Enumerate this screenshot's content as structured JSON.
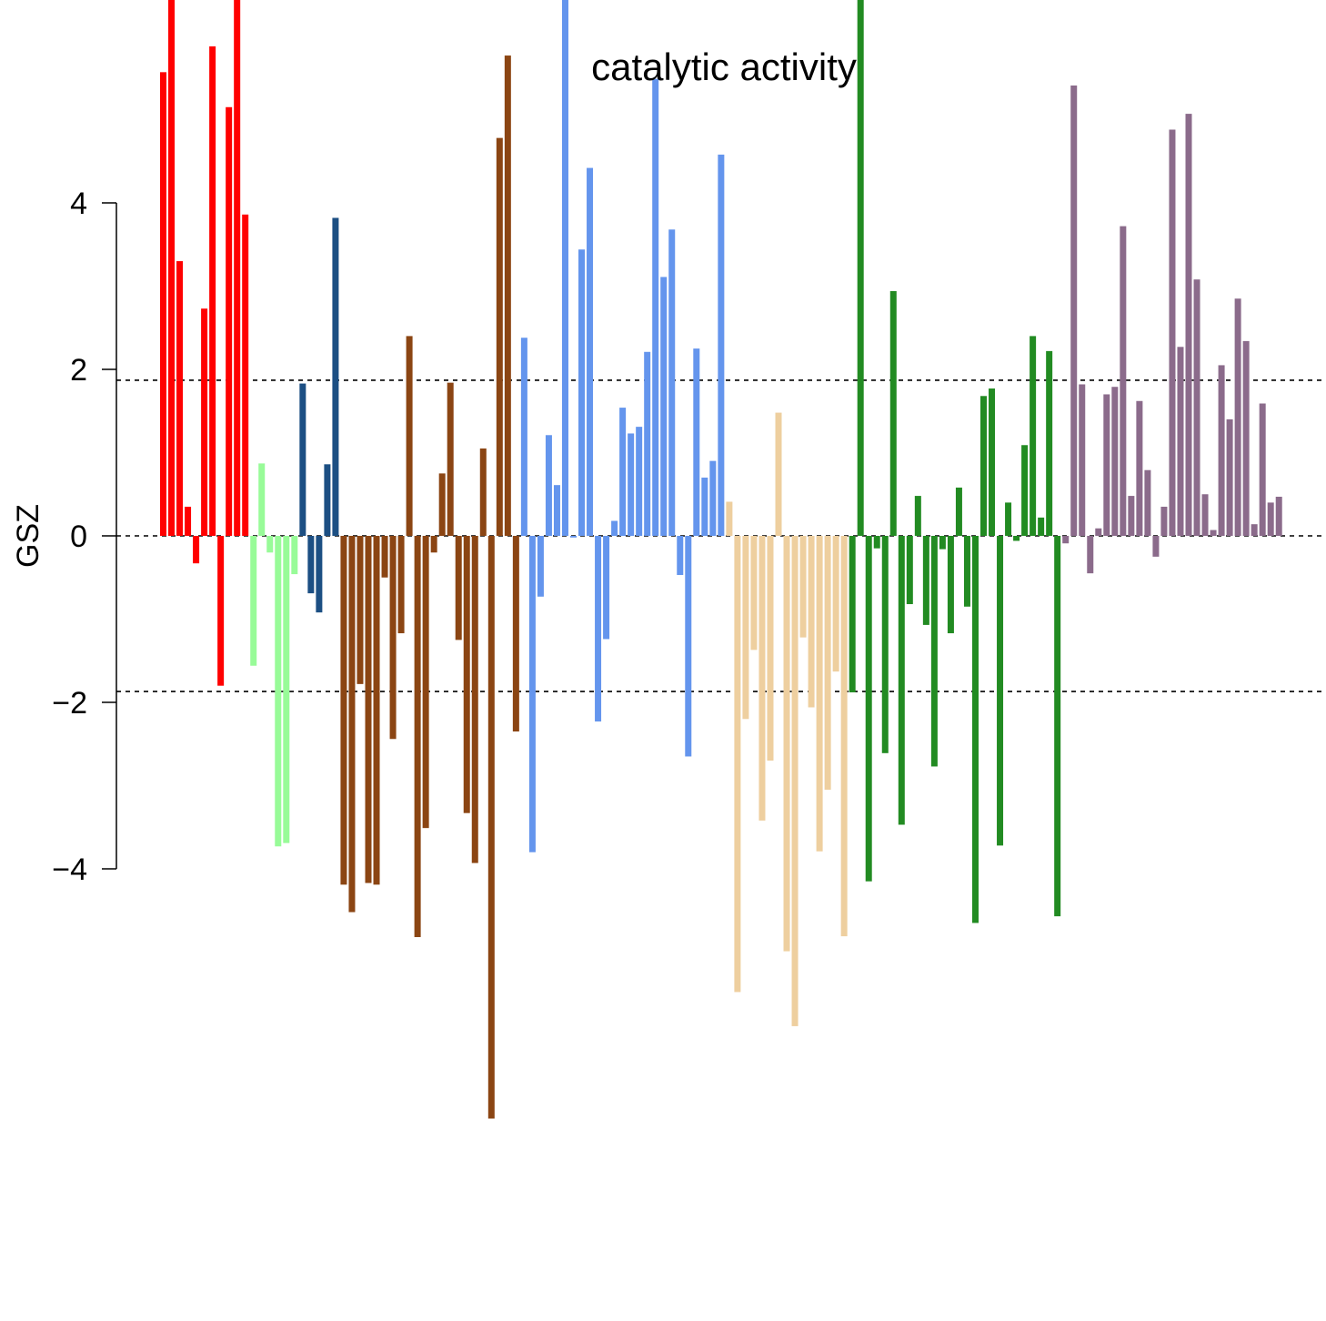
{
  "chart_data": {
    "type": "bar",
    "title": "catalytic activity",
    "ylabel": "GSZ",
    "yticks": [
      -4,
      -2,
      0,
      2,
      4
    ],
    "ytick_labels": [
      "−4",
      "−2",
      "0",
      "2",
      "4"
    ],
    "thresholds": [
      1.87,
      0,
      -1.87
    ],
    "colors": {
      "red": "#ff0000",
      "lightgreen": "#98fb98",
      "steelblue": "#1c4f83",
      "brown": "#8b4513",
      "cornflower": "#6495ed",
      "wheat": "#eecf9f",
      "green": "#228b22",
      "purple": "#8b6b8b"
    },
    "groups": [
      {
        "color": "red",
        "values": [
          5.57,
          7.5,
          3.3,
          0.35,
          -0.33,
          2.73,
          5.88,
          -1.8,
          5.15,
          7.5,
          3.86
        ]
      },
      {
        "color": "lightgreen",
        "values": [
          -1.56,
          0.87,
          -0.2,
          -3.73,
          -3.69,
          -0.46
        ]
      },
      {
        "color": "steelblue",
        "values": [
          1.83,
          -0.69,
          -0.92,
          0.86,
          3.82
        ]
      },
      {
        "color": "brown",
        "values": [
          -4.19,
          -4.52,
          -1.78,
          -4.17,
          -4.19,
          -0.5,
          -2.44,
          -1.17,
          2.4,
          -4.82,
          -3.51,
          -0.2,
          0.75,
          1.84,
          -1.25,
          -3.33,
          -3.93,
          1.05,
          -7.0,
          4.78,
          5.77,
          -2.35
        ]
      },
      {
        "color": "cornflower",
        "values": [
          2.38,
          -3.8,
          -0.73,
          1.21,
          0.61,
          7.5,
          -0.02,
          3.44,
          4.42,
          -2.23,
          -1.24,
          0.18,
          1.54,
          1.23,
          1.31,
          2.21,
          5.49,
          3.11,
          3.68,
          -0.47,
          -2.65,
          2.25,
          0.7,
          0.9,
          4.58
        ]
      },
      {
        "color": "wheat",
        "values": [
          0.41,
          -5.48,
          -2.2,
          -1.37,
          -3.42,
          -2.7,
          1.48,
          -4.99,
          -5.89,
          -1.22,
          -2.06,
          -3.79,
          -3.05,
          -1.63,
          -4.81
        ]
      },
      {
        "color": "green",
        "values": [
          -1.88,
          7.5,
          -4.15,
          -0.15,
          -2.61,
          2.94,
          -3.47,
          -0.82,
          0.48,
          -1.07,
          -2.77,
          -0.16,
          -1.17,
          0.58,
          -0.85,
          -4.65,
          1.68,
          1.77,
          -3.72,
          0.4,
          -0.06,
          1.09,
          2.4,
          0.22,
          2.22,
          -4.57
        ]
      },
      {
        "color": "purple",
        "values": [
          -0.09,
          5.41,
          1.82,
          -0.45,
          0.09,
          1.7,
          1.79,
          3.72,
          0.48,
          1.62,
          0.79,
          -0.25,
          0.35,
          4.88,
          2.27,
          5.07,
          3.08,
          0.5,
          0.07,
          2.05,
          1.4,
          2.85,
          2.34,
          0.14,
          1.59,
          0.4,
          0.47
        ]
      }
    ]
  }
}
